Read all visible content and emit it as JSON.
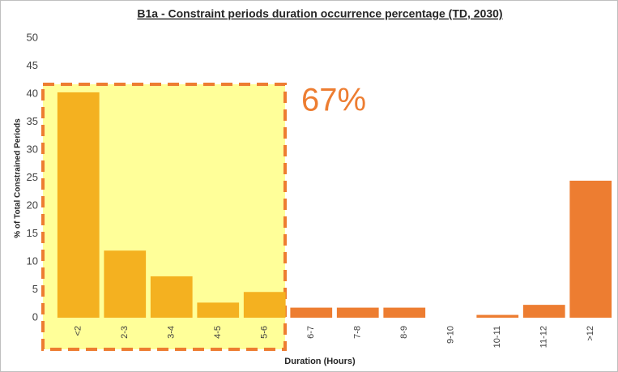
{
  "chart_data": {
    "type": "bar",
    "title": "B1a - Constraint periods duration occurrence percentage (TD, 2030)",
    "x_label": "Duration (Hours)",
    "y_label": "% of Total Constrained  Periods",
    "annotation": "67%",
    "categories": [
      "<2",
      "2-3",
      "3-4",
      "4-5",
      "5-6",
      "6-7",
      "7-8",
      "8-9",
      "9-10",
      "10-11",
      "11-12",
      ">12"
    ],
    "values": [
      40.3,
      12,
      7.4,
      2.7,
      4.6,
      1.8,
      1.8,
      1.8,
      0,
      0.5,
      2.3,
      24.5
    ],
    "colors": [
      "#f4b120",
      "#f4b120",
      "#f4b120",
      "#f4b120",
      "#f4b120",
      "#ed7d31",
      "#ed7d31",
      "#ed7d31",
      "#ed7d31",
      "#ed7d31",
      "#ed7d31",
      "#ed7d31"
    ],
    "ylim": [
      0,
      50
    ],
    "yticks": [
      0,
      5,
      10,
      15,
      20,
      25,
      30,
      35,
      40,
      45,
      50
    ],
    "grid": false
  }
}
